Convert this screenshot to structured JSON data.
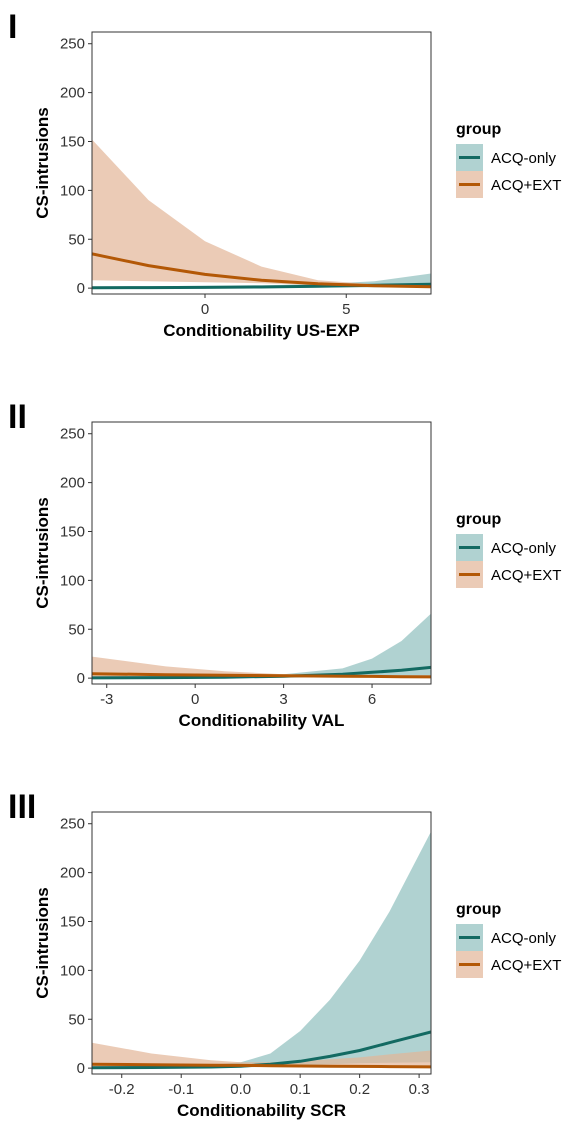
{
  "colors": {
    "acq_only_line": "#136a62",
    "acq_only_fill": "#8fbfbd",
    "acq_ext_line": "#b35806",
    "acq_ext_fill": "#e3b597",
    "panel_border": "#333333",
    "tick": "#333333"
  },
  "legend": {
    "title": "group",
    "entries": [
      "ACQ-only",
      "ACQ+EXT"
    ]
  },
  "chart_data": [
    {
      "type": "line",
      "panel_label": "I",
      "xlabel": "Conditionability US-EXP",
      "ylabel": "CS-intrusions",
      "xlim": [
        -4,
        8
      ],
      "ylim": [
        -6,
        262
      ],
      "xticks": [
        {
          "value": 0,
          "label": "0"
        },
        {
          "value": 5,
          "label": "5"
        }
      ],
      "yticks": [
        {
          "value": 0,
          "label": "0"
        },
        {
          "value": 50,
          "label": "50"
        },
        {
          "value": 100,
          "label": "100"
        },
        {
          "value": 150,
          "label": "150"
        },
        {
          "value": 200,
          "label": "200"
        },
        {
          "value": 250,
          "label": "250"
        }
      ],
      "grid": false,
      "legend_position": "right",
      "series": [
        {
          "name": "ACQ-only",
          "x": [
            -4,
            -2,
            0,
            2,
            4,
            6,
            8
          ],
          "y": [
            0.3,
            0.5,
            0.8,
            1.2,
            2,
            3,
            4
          ],
          "lower": [
            0,
            0,
            0,
            0,
            0.5,
            0.8,
            0.5
          ],
          "upper": [
            1.5,
            2,
            2.5,
            3,
            4,
            7,
            15
          ]
        },
        {
          "name": "ACQ+EXT",
          "x": [
            -4,
            -2,
            0,
            2,
            4,
            6,
            8
          ],
          "y": [
            35,
            23,
            14,
            8,
            4.5,
            2.5,
            1.5
          ],
          "lower": [
            8,
            7,
            6,
            5,
            3,
            1.5,
            0.5
          ],
          "upper": [
            152,
            90,
            48,
            22,
            8,
            4,
            3
          ]
        }
      ]
    },
    {
      "type": "line",
      "panel_label": "II",
      "xlabel": "Conditionability VAL",
      "ylabel": "CS-intrusions",
      "xlim": [
        -3.5,
        8
      ],
      "ylim": [
        -6,
        262
      ],
      "xticks": [
        {
          "value": -3,
          "label": "-3"
        },
        {
          "value": 0,
          "label": "0"
        },
        {
          "value": 3,
          "label": "3"
        },
        {
          "value": 6,
          "label": "6"
        }
      ],
      "yticks": [
        {
          "value": 0,
          "label": "0"
        },
        {
          "value": 50,
          "label": "50"
        },
        {
          "value": 100,
          "label": "100"
        },
        {
          "value": 150,
          "label": "150"
        },
        {
          "value": 200,
          "label": "200"
        },
        {
          "value": 250,
          "label": "250"
        }
      ],
      "grid": false,
      "legend_position": "right",
      "series": [
        {
          "name": "ACQ-only",
          "x": [
            -3.5,
            -1,
            1,
            3,
            5,
            6,
            7,
            8
          ],
          "y": [
            0.2,
            0.5,
            1,
            2,
            4,
            6,
            8,
            11
          ],
          "lower": [
            0,
            0,
            0,
            0.5,
            1.2,
            1.8,
            2,
            2
          ],
          "upper": [
            2,
            2.5,
            3,
            4,
            10,
            20,
            38,
            66
          ]
        },
        {
          "name": "ACQ+EXT",
          "x": [
            -3.5,
            -1,
            1,
            3,
            5,
            6,
            7,
            8
          ],
          "y": [
            4.5,
            3.5,
            3,
            2.5,
            2,
            1.8,
            1.5,
            1.3
          ],
          "lower": [
            0.5,
            1,
            1.5,
            1.5,
            1,
            0.8,
            0.5,
            0.3
          ],
          "upper": [
            22,
            12,
            7,
            4,
            3,
            3,
            3,
            3
          ]
        }
      ]
    },
    {
      "type": "line",
      "panel_label": "III",
      "xlabel": "Conditionability SCR",
      "ylabel": "CS-intrusions",
      "xlim": [
        -0.25,
        0.32
      ],
      "ylim": [
        -6,
        262
      ],
      "xticks": [
        {
          "value": -0.2,
          "label": "-0.2"
        },
        {
          "value": -0.1,
          "label": "-0.1"
        },
        {
          "value": 0,
          "label": "0.0"
        },
        {
          "value": 0.1,
          "label": "0.1"
        },
        {
          "value": 0.2,
          "label": "0.2"
        },
        {
          "value": 0.3,
          "label": "0.3"
        }
      ],
      "yticks": [
        {
          "value": 0,
          "label": "0"
        },
        {
          "value": 50,
          "label": "50"
        },
        {
          "value": 100,
          "label": "100"
        },
        {
          "value": 150,
          "label": "150"
        },
        {
          "value": 200,
          "label": "200"
        },
        {
          "value": 250,
          "label": "250"
        }
      ],
      "grid": false,
      "legend_position": "right",
      "series": [
        {
          "name": "ACQ-only",
          "x": [
            -0.25,
            -0.15,
            -0.05,
            0.0,
            0.05,
            0.1,
            0.15,
            0.2,
            0.25,
            0.32
          ],
          "y": [
            0.3,
            0.6,
            1.2,
            2,
            4,
            7,
            12,
            18,
            26,
            37
          ],
          "lower": [
            0,
            0,
            0.3,
            0.8,
            1.5,
            3,
            4,
            5,
            5.5,
            6
          ],
          "upper": [
            2,
            2.5,
            3.5,
            6,
            15,
            38,
            70,
            110,
            160,
            242
          ]
        },
        {
          "name": "ACQ+EXT",
          "x": [
            -0.25,
            -0.15,
            -0.05,
            0.0,
            0.05,
            0.1,
            0.15,
            0.2,
            0.25,
            0.32
          ],
          "y": [
            4,
            3.5,
            3,
            2.8,
            2.5,
            2.2,
            2,
            1.8,
            1.6,
            1.3
          ],
          "lower": [
            0.5,
            1,
            1.5,
            1.5,
            1.2,
            1,
            0.8,
            0.5,
            0.3,
            0.2
          ],
          "upper": [
            26,
            15,
            8,
            6,
            6,
            7,
            9,
            11,
            14,
            18
          ]
        }
      ]
    }
  ]
}
